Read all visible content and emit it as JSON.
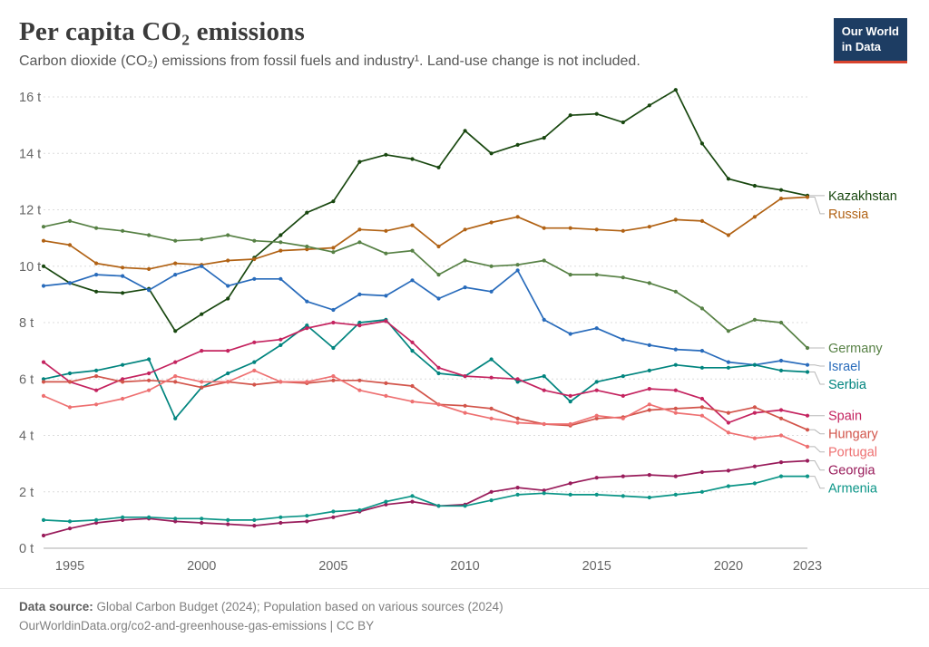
{
  "header": {
    "title": "Per capita CO₂ emissions",
    "subtitle": "Carbon dioxide (CO₂) emissions from fossil fuels and industry¹. Land-use change is not included.",
    "logo": {
      "line1": "Our World",
      "line2": "in Data",
      "bg": "#1d3d63",
      "accent": "#d8432e"
    }
  },
  "footer": {
    "source_label": "Data source:",
    "source_text": " Global Carbon Budget (2024); Population based on various sources (2024)",
    "link_text": "OurWorldinData.org/co2-and-greenhouse-gas-emissions | CC BY"
  },
  "chart_data": {
    "type": "line",
    "title": "Per capita CO₂ emissions",
    "xlabel": "",
    "ylabel": "",
    "x_range": [
      1994,
      2023
    ],
    "x_ticks": [
      1995,
      2000,
      2005,
      2010,
      2015,
      2020,
      2023
    ],
    "ylim": [
      0,
      16
    ],
    "y_ticks": [
      0,
      2,
      4,
      6,
      8,
      10,
      12,
      14,
      16
    ],
    "y_tick_suffix": " t",
    "grid": "dashed-horizontal",
    "legend": "right-edge-labels",
    "years": [
      1994,
      1995,
      1996,
      1997,
      1998,
      1999,
      2000,
      2001,
      2002,
      2003,
      2004,
      2005,
      2006,
      2007,
      2008,
      2009,
      2010,
      2011,
      2012,
      2013,
      2014,
      2015,
      2016,
      2017,
      2018,
      2019,
      2020,
      2021,
      2022,
      2023
    ],
    "series": [
      {
        "name": "Kazakhstan",
        "color": "#18470F",
        "values": [
          10.0,
          9.4,
          9.1,
          9.05,
          9.2,
          7.7,
          8.3,
          8.85,
          10.3,
          11.1,
          11.9,
          12.3,
          13.7,
          13.95,
          13.8,
          13.5,
          14.8,
          14.0,
          14.3,
          14.55,
          15.35,
          15.4,
          15.1,
          15.7,
          16.25,
          14.35,
          13.1,
          12.85,
          12.7,
          12.5
        ]
      },
      {
        "name": "Russia",
        "color": "#B16214",
        "values": [
          10.9,
          10.75,
          10.1,
          9.95,
          9.9,
          10.1,
          10.05,
          10.2,
          10.25,
          10.55,
          10.6,
          10.65,
          11.3,
          11.25,
          11.45,
          10.7,
          11.3,
          11.55,
          11.75,
          11.35,
          11.35,
          11.3,
          11.25,
          11.4,
          11.65,
          11.6,
          11.1,
          11.75,
          12.4,
          12.45
        ]
      },
      {
        "name": "Germany",
        "color": "#578145",
        "values": [
          11.4,
          11.6,
          11.35,
          11.25,
          11.1,
          10.9,
          10.95,
          11.1,
          10.9,
          10.85,
          10.7,
          10.5,
          10.85,
          10.45,
          10.55,
          9.7,
          10.2,
          10.0,
          10.05,
          10.2,
          9.7,
          9.7,
          9.6,
          9.4,
          9.1,
          8.5,
          7.7,
          8.1,
          8.0,
          7.1
        ]
      },
      {
        "name": "Israel",
        "color": "#286BBB",
        "values": [
          9.3,
          9.4,
          9.7,
          9.65,
          9.15,
          9.7,
          10.0,
          9.3,
          9.55,
          9.55,
          8.75,
          8.45,
          9.0,
          8.95,
          9.5,
          8.85,
          9.25,
          9.1,
          9.85,
          8.1,
          7.6,
          7.8,
          7.4,
          7.2,
          7.05,
          7.0,
          6.6,
          6.5,
          6.65,
          6.5
        ]
      },
      {
        "name": "Serbia",
        "color": "#00847E",
        "values": [
          6.0,
          6.2,
          6.3,
          6.5,
          6.7,
          4.6,
          5.7,
          6.2,
          6.6,
          7.2,
          7.9,
          7.1,
          8.0,
          8.1,
          7.0,
          6.2,
          6.1,
          6.7,
          5.9,
          6.1,
          5.2,
          5.9,
          6.1,
          6.3,
          6.5,
          6.4,
          6.4,
          6.5,
          6.3,
          6.25
        ]
      },
      {
        "name": "Spain",
        "color": "#C4235F",
        "values": [
          6.6,
          5.9,
          5.6,
          6.0,
          6.2,
          6.6,
          7.0,
          7.0,
          7.3,
          7.4,
          7.8,
          8.0,
          7.9,
          8.05,
          7.3,
          6.4,
          6.1,
          6.05,
          6.0,
          5.6,
          5.4,
          5.6,
          5.4,
          5.65,
          5.6,
          5.3,
          4.45,
          4.8,
          4.9,
          4.7
        ]
      },
      {
        "name": "Hungary",
        "color": "#D2544A",
        "values": [
          5.9,
          5.9,
          6.1,
          5.9,
          5.95,
          5.9,
          5.7,
          5.9,
          5.8,
          5.9,
          5.85,
          5.95,
          5.95,
          5.85,
          5.75,
          5.1,
          5.05,
          4.95,
          4.6,
          4.4,
          4.35,
          4.6,
          4.65,
          4.9,
          4.95,
          5.0,
          4.8,
          5.0,
          4.6,
          4.2
        ]
      },
      {
        "name": "Portugal",
        "color": "#EE7071",
        "values": [
          5.4,
          5.0,
          5.1,
          5.3,
          5.6,
          6.1,
          5.9,
          5.9,
          6.3,
          5.9,
          5.9,
          6.1,
          5.6,
          5.4,
          5.2,
          5.1,
          4.8,
          4.6,
          4.45,
          4.4,
          4.4,
          4.7,
          4.6,
          5.1,
          4.8,
          4.7,
          4.1,
          3.9,
          4.0,
          3.6
        ]
      },
      {
        "name": "Georgia",
        "color": "#991C5B",
        "values": [
          0.45,
          0.7,
          0.9,
          1.0,
          1.05,
          0.95,
          0.9,
          0.85,
          0.8,
          0.9,
          0.95,
          1.1,
          1.3,
          1.55,
          1.65,
          1.5,
          1.55,
          2.0,
          2.15,
          2.05,
          2.3,
          2.5,
          2.55,
          2.6,
          2.55,
          2.7,
          2.75,
          2.9,
          3.05,
          3.1
        ]
      },
      {
        "name": "Armenia",
        "color": "#0B9587",
        "values": [
          1.0,
          0.95,
          1.0,
          1.1,
          1.1,
          1.05,
          1.05,
          1.0,
          1.0,
          1.1,
          1.15,
          1.3,
          1.35,
          1.65,
          1.85,
          1.5,
          1.5,
          1.7,
          1.9,
          1.95,
          1.9,
          1.9,
          1.85,
          1.8,
          1.9,
          2.0,
          2.2,
          2.3,
          2.55,
          2.55
        ]
      }
    ]
  }
}
